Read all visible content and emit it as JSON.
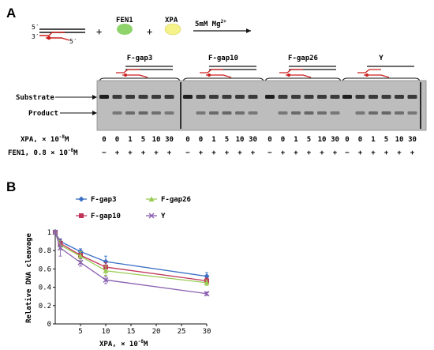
{
  "panelA": {
    "letter": "A",
    "five_prime_top": "5′",
    "three_prime": "3′",
    "five_prime_bottom": "5′",
    "plus1": "+",
    "plus2": "+",
    "fen1_label": "FEN1",
    "xpa_label": "XPA",
    "mg_label": "5mM Mg",
    "mg_superscript": "2+",
    "colors": {
      "fen1": "#8fd36b",
      "xpa": "#f5f28a",
      "red": "#cc1f1f"
    },
    "groups": [
      "F-gap3",
      "F-gap10",
      "F-gap26",
      "Y"
    ],
    "substrate_label": "Substrate",
    "product_label": "Product",
    "xpa_row_label": "XPA, × 10",
    "xpa_row_exp": "-8",
    "xpa_row_unit": "M",
    "fen1_row_label": "FEN1, 0.8 × 10",
    "fen1_row_exp": "-8",
    "fen1_row_unit": "M",
    "xpa_values": [
      "0",
      "0",
      "1",
      "5",
      "10",
      "30"
    ],
    "fen1_values": [
      "−",
      "+",
      "+",
      "+",
      "+",
      "+"
    ]
  },
  "panelB": {
    "letter": "B",
    "chart_data": {
      "type": "line",
      "ylabel": "Relative DNA cleavage",
      "xlabel": "XPA, × 10",
      "xlabel_exp": "-8",
      "xlabel_unit": "M",
      "xlim": [
        0,
        30
      ],
      "ylim": [
        0,
        1
      ],
      "xticks": [
        5,
        10,
        15,
        20,
        25,
        30
      ],
      "yticks": [
        0,
        0.2,
        0.4,
        0.6,
        0.8,
        1
      ],
      "grid": false,
      "legend_placement": "top-left",
      "x": [
        0,
        1,
        5,
        10,
        30
      ],
      "series": [
        {
          "name": "F-gap3",
          "color": "#3b6fc4",
          "marker": "diamond",
          "values": [
            1.0,
            0.9,
            0.79,
            0.68,
            0.52
          ],
          "errors": [
            0.02,
            0.03,
            0.03,
            0.06,
            0.04
          ]
        },
        {
          "name": "F-gap10",
          "color": "#c0345a",
          "marker": "square",
          "values": [
            1.0,
            0.88,
            0.75,
            0.62,
            0.47
          ],
          "errors": [
            0.02,
            0.04,
            0.04,
            0.05,
            0.03
          ]
        },
        {
          "name": "F-gap26",
          "color": "#9acb55",
          "marker": "triangle",
          "values": [
            1.0,
            0.86,
            0.74,
            0.58,
            0.45
          ],
          "errors": [
            0.02,
            0.05,
            0.05,
            0.05,
            0.03
          ]
        },
        {
          "name": "Y",
          "color": "#8a5fb0",
          "marker": "x",
          "values": [
            1.0,
            0.83,
            0.67,
            0.48,
            0.33
          ],
          "errors": [
            0.02,
            0.09,
            0.04,
            0.04,
            0.02
          ]
        }
      ]
    }
  }
}
